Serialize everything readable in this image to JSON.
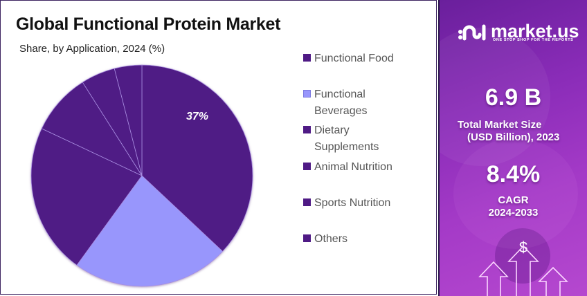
{
  "header": {
    "title": "Global Functional Protein Market",
    "subtitle": "Share, by Application, 2024 (%)"
  },
  "chart_data": {
    "type": "pie",
    "title": "Global Functional Protein Market",
    "subtitle": "Share, by Application, 2024 (%)",
    "categories": [
      "Functional Food",
      "Functional Beverages",
      "Dietary Supplements",
      "Animal Nutrition",
      "Sports Nutrition",
      "Others"
    ],
    "values": [
      37,
      23,
      22,
      9,
      5,
      4
    ],
    "colors": [
      "#4f1a85",
      "#9896fc",
      "#4f1a85",
      "#4f1a85",
      "#4f1a85",
      "#4f1a85"
    ],
    "data_labels": [
      {
        "category": "Functional Food",
        "text": "37%"
      }
    ],
    "legend_position": "right",
    "start_angle": "top, clockwise"
  },
  "legend": {
    "items": [
      {
        "label": "Functional Food",
        "color": "#4f1a85"
      },
      {
        "label": "Functional Beverages",
        "color": "#9896fc"
      },
      {
        "label": "Dietary Supplements",
        "color": "#4f1a85"
      },
      {
        "label": "Animal Nutrition",
        "color": "#4f1a85"
      },
      {
        "label": "Sports Nutrition",
        "color": "#4f1a85"
      },
      {
        "label": "Others",
        "color": "#4f1a85"
      }
    ]
  },
  "pie_label": "37%",
  "sidebar": {
    "brand": "market.us",
    "tagline": "ONE STOP SHOP FOR THE REPORTS",
    "market_size_value": "6.9 B",
    "market_size_label_1": "Total Market Size",
    "market_size_label_2": "(USD Billion), 2023",
    "cagr_value": "8.4%",
    "cagr_label": "CAGR",
    "cagr_period": "2024-2033",
    "dollar_symbol": "$"
  }
}
